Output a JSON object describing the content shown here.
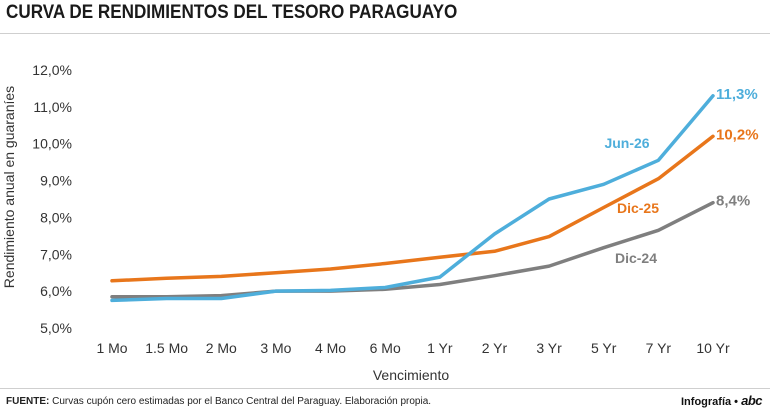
{
  "header": {
    "title": "CURVA DE RENDIMIENTOS DEL TESORO PARAGUAYO"
  },
  "footer": {
    "source_label": "FUENTE:",
    "source_text": "Curvas cupón cero estimadas por el Banco Central del Paraguay. Elaboración propia.",
    "credit_text": "Infografía •",
    "credit_logo": "abc"
  },
  "chart_data": {
    "type": "line",
    "title": "CURVA DE RENDIMIENTOS DEL TESORO PARAGUAYO",
    "xlabel": "Vencimiento",
    "ylabel": "Rendimiento anual en guaraníes",
    "ylim": [
      5.0,
      12.0
    ],
    "yticks": [
      "5,0%",
      "6,0%",
      "7,0%",
      "8,0%",
      "9,0%",
      "10,0%",
      "11,0%",
      "12,0%"
    ],
    "grid": false,
    "categories": [
      "1 Mo",
      "1.5 Mo",
      "2 Mo",
      "3 Mo",
      "4 Mo",
      "6 Mo",
      "1 Yr",
      "2 Yr",
      "3 Yr",
      "5 Yr",
      "7 Yr",
      "10 Yr"
    ],
    "series": [
      {
        "name": "Jun-26",
        "color": "#4eaedb",
        "end_label": "11,3%",
        "values": [
          5.75,
          5.8,
          5.8,
          6.0,
          6.02,
          6.1,
          6.38,
          7.55,
          8.5,
          8.9,
          9.55,
          11.3
        ]
      },
      {
        "name": "Dic-25",
        "color": "#e8761b",
        "end_label": "10,2%",
        "values": [
          6.28,
          6.35,
          6.4,
          6.5,
          6.6,
          6.75,
          6.92,
          7.08,
          7.48,
          8.27,
          9.05,
          10.2
        ]
      },
      {
        "name": "Dic-24",
        "color": "#7f7f7f",
        "end_label": "8,4%",
        "values": [
          5.85,
          5.85,
          5.88,
          6.0,
          6.0,
          6.05,
          6.18,
          6.42,
          6.68,
          7.18,
          7.65,
          8.4
        ]
      }
    ]
  }
}
